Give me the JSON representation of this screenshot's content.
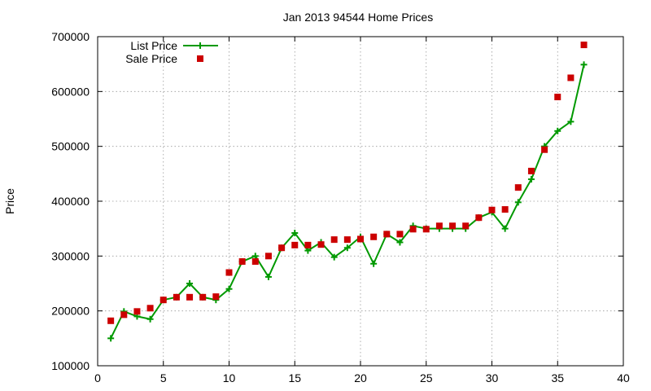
{
  "chart_data": {
    "type": "line",
    "title": "Jan 2013 94544 Home Prices",
    "xlabel": "",
    "ylabel": "Price",
    "xlim": [
      0,
      40
    ],
    "ylim": [
      100000,
      700000
    ],
    "xticks": [
      0,
      5,
      10,
      15,
      20,
      25,
      30,
      35,
      40
    ],
    "yticks": [
      100000,
      200000,
      300000,
      400000,
      500000,
      600000,
      700000
    ],
    "x_tick_labels": [
      "0",
      "5",
      "10",
      "15",
      "20",
      "25",
      "30",
      "35",
      "40"
    ],
    "y_tick_labels": [
      "100000",
      "200000",
      "300000",
      "400000",
      "500000",
      "600000",
      "700000"
    ],
    "grid": true,
    "legend_position": "top-left",
    "series": [
      {
        "name": "List Price",
        "kind": "line",
        "marker": "plus",
        "color": "#009900",
        "x": [
          1,
          2,
          3,
          4,
          5,
          6,
          7,
          8,
          9,
          10,
          11,
          12,
          13,
          14,
          15,
          16,
          17,
          18,
          19,
          20,
          21,
          22,
          23,
          24,
          25,
          26,
          27,
          28,
          29,
          30,
          31,
          32,
          33,
          34,
          35,
          36,
          37
        ],
        "values": [
          150000,
          199000,
          190000,
          185000,
          220000,
          225000,
          250000,
          225000,
          220000,
          240000,
          290000,
          300000,
          262000,
          315000,
          342000,
          310000,
          325000,
          298000,
          315000,
          335000,
          286000,
          340000,
          325000,
          355000,
          350000,
          350000,
          350000,
          350000,
          370000,
          380000,
          350000,
          398000,
          440000,
          500000,
          528000,
          545000,
          649000
        ]
      },
      {
        "name": "Sale Price",
        "kind": "scatter",
        "marker": "square",
        "color": "#cc0000",
        "x": [
          1,
          2,
          3,
          4,
          5,
          6,
          7,
          8,
          9,
          10,
          11,
          12,
          13,
          14,
          15,
          16,
          17,
          18,
          19,
          20,
          21,
          22,
          23,
          24,
          25,
          26,
          27,
          28,
          29,
          30,
          31,
          32,
          33,
          34,
          35,
          36,
          37
        ],
        "values": [
          182000,
          193000,
          199000,
          205000,
          220000,
          225000,
          225000,
          225000,
          226000,
          270000,
          290000,
          290000,
          300000,
          315000,
          320000,
          320000,
          321000,
          330000,
          330000,
          331000,
          335000,
          340000,
          340000,
          349000,
          349000,
          355000,
          355000,
          355000,
          370000,
          384000,
          385000,
          425000,
          455000,
          494000,
          590000,
          625000,
          685000
        ]
      }
    ]
  }
}
